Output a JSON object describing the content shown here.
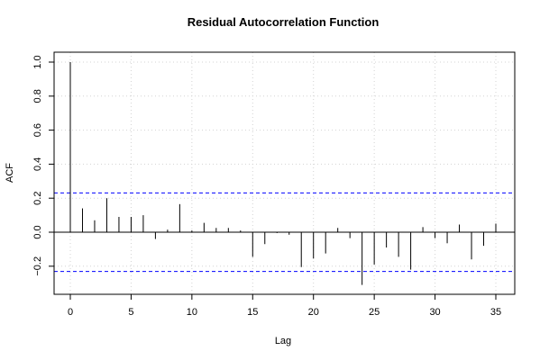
{
  "chart_data": {
    "type": "bar",
    "title": "Residual Autocorrelation Function",
    "xlabel": "Lag",
    "ylabel": "ACF",
    "xlim": [
      -1.3,
      36.3
    ],
    "ylim": [
      -0.31,
      1.0
    ],
    "x_ticks": [
      0,
      5,
      10,
      15,
      20,
      25,
      30,
      35
    ],
    "y_ticks": [
      -0.2,
      0.0,
      0.2,
      0.4,
      0.6,
      0.8,
      1.0
    ],
    "y_tick_labels": [
      "−0.2",
      "0.0",
      "0.2",
      "0.4",
      "0.6",
      "0.8",
      "1.0"
    ],
    "grid": true,
    "confidence_bounds": [
      0.231,
      -0.231
    ],
    "colors": {
      "bars": "#000000",
      "confidence": "#0000ff",
      "grid": "#d3d3d3",
      "zero_line": "#000000"
    },
    "lags": [
      0,
      1,
      2,
      3,
      4,
      5,
      6,
      7,
      8,
      9,
      10,
      11,
      12,
      13,
      14,
      15,
      16,
      17,
      18,
      19,
      20,
      21,
      22,
      23,
      24,
      25,
      26,
      27,
      28,
      29,
      30,
      31,
      32,
      33,
      34,
      35
    ],
    "values": [
      1.0,
      0.14,
      0.07,
      0.2,
      0.09,
      0.09,
      0.1,
      -0.04,
      0.015,
      0.165,
      0.01,
      0.055,
      0.025,
      0.025,
      0.01,
      -0.145,
      -0.07,
      -0.005,
      -0.015,
      -0.205,
      -0.155,
      -0.125,
      0.025,
      -0.035,
      -0.31,
      -0.19,
      -0.09,
      -0.145,
      -0.22,
      0.03,
      -0.035,
      -0.065,
      0.045,
      -0.16,
      -0.08,
      0.05
    ]
  }
}
